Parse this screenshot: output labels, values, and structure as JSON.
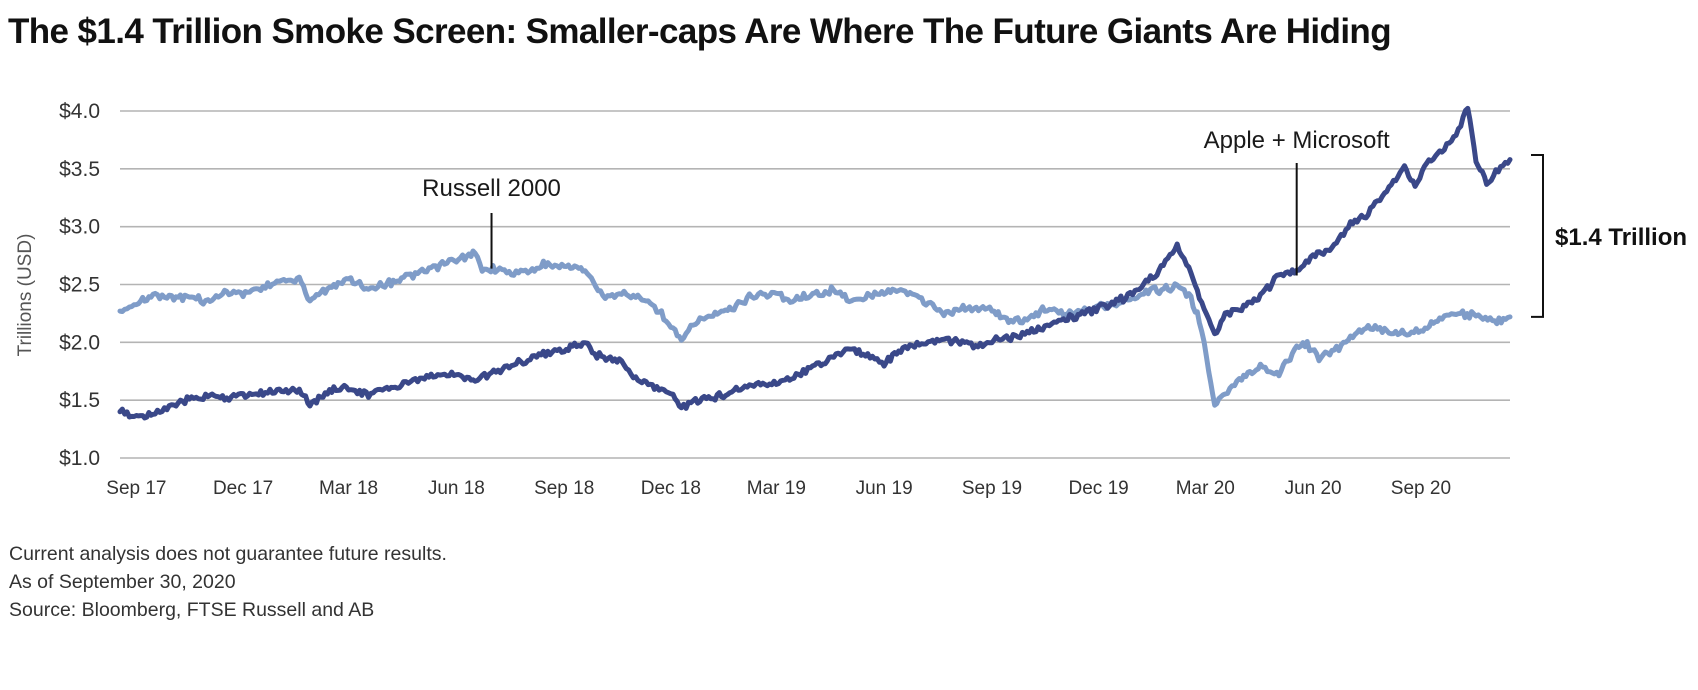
{
  "chart_data": {
    "type": "line",
    "title": "The $1.4 Trillion Smoke Screen: Smaller-caps Are Where The Future Giants Are Hiding",
    "ylabel": "Trillions (USD)",
    "xlabel": "",
    "ylim": [
      1.0,
      4.0
    ],
    "yticks": [
      {
        "value": 4.0,
        "label": "$4.0"
      },
      {
        "value": 3.5,
        "label": "$3.5"
      },
      {
        "value": 3.0,
        "label": "$3.0"
      },
      {
        "value": 2.5,
        "label": "$2.5"
      },
      {
        "value": 2.0,
        "label": "$2.0"
      },
      {
        "value": 1.5,
        "label": "$1.5"
      },
      {
        "value": 1.0,
        "label": "$1.0"
      }
    ],
    "xlim": [
      "2017-09-01",
      "2020-11-30"
    ],
    "xticks": [
      {
        "date": "2017-09-15",
        "label": "Sep 17"
      },
      {
        "date": "2017-12-15",
        "label": "Dec 17"
      },
      {
        "date": "2018-03-15",
        "label": "Mar 18"
      },
      {
        "date": "2018-06-15",
        "label": "Jun 18"
      },
      {
        "date": "2018-09-15",
        "label": "Sep 18"
      },
      {
        "date": "2018-12-15",
        "label": "Dec 18"
      },
      {
        "date": "2019-03-15",
        "label": "Mar 19"
      },
      {
        "date": "2019-06-15",
        "label": "Jun 19"
      },
      {
        "date": "2019-09-15",
        "label": "Sep 19"
      },
      {
        "date": "2019-12-15",
        "label": "Dec 19"
      },
      {
        "date": "2020-03-15",
        "label": "Mar 20"
      },
      {
        "date": "2020-06-15",
        "label": "Jun 20"
      },
      {
        "date": "2020-09-15",
        "label": "Sep 20"
      }
    ],
    "grid": true,
    "series": [
      {
        "name": "Russell 2000",
        "color": "#7f9cc8",
        "points": [
          [
            "2017-09-01",
            2.27
          ],
          [
            "2017-09-15",
            2.33
          ],
          [
            "2017-10-01",
            2.41
          ],
          [
            "2017-10-15",
            2.4
          ],
          [
            "2017-11-01",
            2.38
          ],
          [
            "2017-11-15",
            2.36
          ],
          [
            "2017-12-01",
            2.43
          ],
          [
            "2017-12-15",
            2.42
          ],
          [
            "2018-01-01",
            2.48
          ],
          [
            "2018-01-15",
            2.53
          ],
          [
            "2018-02-01",
            2.55
          ],
          [
            "2018-02-10",
            2.36
          ],
          [
            "2018-02-25",
            2.46
          ],
          [
            "2018-03-15",
            2.55
          ],
          [
            "2018-04-01",
            2.46
          ],
          [
            "2018-04-15",
            2.5
          ],
          [
            "2018-05-01",
            2.56
          ],
          [
            "2018-05-15",
            2.6
          ],
          [
            "2018-06-01",
            2.67
          ],
          [
            "2018-06-15",
            2.71
          ],
          [
            "2018-07-01",
            2.77
          ],
          [
            "2018-07-07",
            2.62
          ],
          [
            "2018-07-20",
            2.64
          ],
          [
            "2018-08-01",
            2.6
          ],
          [
            "2018-08-15",
            2.62
          ],
          [
            "2018-09-01",
            2.68
          ],
          [
            "2018-09-15",
            2.66
          ],
          [
            "2018-10-01",
            2.64
          ],
          [
            "2018-10-10",
            2.5
          ],
          [
            "2018-10-20",
            2.39
          ],
          [
            "2018-11-01",
            2.43
          ],
          [
            "2018-11-15",
            2.4
          ],
          [
            "2018-12-01",
            2.32
          ],
          [
            "2018-12-15",
            2.13
          ],
          [
            "2018-12-24",
            2.01
          ],
          [
            "2019-01-05",
            2.18
          ],
          [
            "2019-01-20",
            2.24
          ],
          [
            "2019-02-05",
            2.29
          ],
          [
            "2019-02-20",
            2.4
          ],
          [
            "2019-03-15",
            2.43
          ],
          [
            "2019-03-25",
            2.36
          ],
          [
            "2019-04-15",
            2.42
          ],
          [
            "2019-05-01",
            2.45
          ],
          [
            "2019-05-20",
            2.36
          ],
          [
            "2019-06-01",
            2.39
          ],
          [
            "2019-06-15",
            2.43
          ],
          [
            "2019-07-01",
            2.46
          ],
          [
            "2019-07-15",
            2.38
          ],
          [
            "2019-08-05",
            2.26
          ],
          [
            "2019-08-25",
            2.3
          ],
          [
            "2019-09-15",
            2.28
          ],
          [
            "2019-10-01",
            2.18
          ],
          [
            "2019-10-15",
            2.2
          ],
          [
            "2019-11-01",
            2.3
          ],
          [
            "2019-11-15",
            2.25
          ],
          [
            "2019-12-01",
            2.27
          ],
          [
            "2019-12-15",
            2.32
          ],
          [
            "2020-01-01",
            2.33
          ],
          [
            "2020-01-15",
            2.38
          ],
          [
            "2020-02-01",
            2.45
          ],
          [
            "2020-02-20",
            2.48
          ],
          [
            "2020-03-01",
            2.42
          ],
          [
            "2020-03-10",
            2.2
          ],
          [
            "2020-03-18",
            1.75
          ],
          [
            "2020-03-23",
            1.46
          ],
          [
            "2020-04-01",
            1.55
          ],
          [
            "2020-04-15",
            1.7
          ],
          [
            "2020-05-01",
            1.8
          ],
          [
            "2020-05-15",
            1.72
          ],
          [
            "2020-06-01",
            1.95
          ],
          [
            "2020-06-10",
            1.99
          ],
          [
            "2020-06-20",
            1.86
          ],
          [
            "2020-07-01",
            1.92
          ],
          [
            "2020-07-15",
            2.02
          ],
          [
            "2020-08-01",
            2.14
          ],
          [
            "2020-08-15",
            2.1
          ],
          [
            "2020-09-01",
            2.07
          ],
          [
            "2020-09-15",
            2.1
          ],
          [
            "2020-10-01",
            2.2
          ],
          [
            "2020-10-15",
            2.26
          ],
          [
            "2020-11-01",
            2.23
          ],
          [
            "2020-11-15",
            2.18
          ],
          [
            "2020-11-30",
            2.22
          ]
        ]
      },
      {
        "name": "Apple + Microsoft",
        "color": "#3a4889",
        "points": [
          [
            "2017-09-01",
            1.4
          ],
          [
            "2017-09-15",
            1.36
          ],
          [
            "2017-10-01",
            1.4
          ],
          [
            "2017-10-15",
            1.44
          ],
          [
            "2017-11-01",
            1.52
          ],
          [
            "2017-11-15",
            1.54
          ],
          [
            "2017-12-01",
            1.52
          ],
          [
            "2017-12-15",
            1.55
          ],
          [
            "2018-01-01",
            1.56
          ],
          [
            "2018-01-15",
            1.6
          ],
          [
            "2018-02-01",
            1.58
          ],
          [
            "2018-02-10",
            1.46
          ],
          [
            "2018-02-25",
            1.57
          ],
          [
            "2018-03-15",
            1.62
          ],
          [
            "2018-04-01",
            1.55
          ],
          [
            "2018-04-15",
            1.6
          ],
          [
            "2018-05-01",
            1.63
          ],
          [
            "2018-05-15",
            1.68
          ],
          [
            "2018-06-01",
            1.72
          ],
          [
            "2018-06-15",
            1.72
          ],
          [
            "2018-07-01",
            1.68
          ],
          [
            "2018-07-15",
            1.74
          ],
          [
            "2018-08-01",
            1.8
          ],
          [
            "2018-08-15",
            1.86
          ],
          [
            "2018-09-01",
            1.9
          ],
          [
            "2018-09-15",
            1.94
          ],
          [
            "2018-10-01",
            1.99
          ],
          [
            "2018-10-15",
            1.88
          ],
          [
            "2018-11-01",
            1.85
          ],
          [
            "2018-11-15",
            1.7
          ],
          [
            "2018-12-01",
            1.62
          ],
          [
            "2018-12-15",
            1.55
          ],
          [
            "2018-12-24",
            1.44
          ],
          [
            "2019-01-05",
            1.5
          ],
          [
            "2019-01-20",
            1.52
          ],
          [
            "2019-02-05",
            1.58
          ],
          [
            "2019-02-20",
            1.62
          ],
          [
            "2019-03-15",
            1.66
          ],
          [
            "2019-04-01",
            1.72
          ],
          [
            "2019-04-15",
            1.8
          ],
          [
            "2019-05-01",
            1.86
          ],
          [
            "2019-05-15",
            1.94
          ],
          [
            "2019-06-01",
            1.88
          ],
          [
            "2019-06-15",
            1.82
          ],
          [
            "2019-07-01",
            1.94
          ],
          [
            "2019-07-15",
            1.99
          ],
          [
            "2019-08-01",
            2.03
          ],
          [
            "2019-08-15",
            2.01
          ],
          [
            "2019-09-01",
            1.96
          ],
          [
            "2019-09-15",
            2.01
          ],
          [
            "2019-10-01",
            2.04
          ],
          [
            "2019-10-15",
            2.08
          ],
          [
            "2019-11-01",
            2.14
          ],
          [
            "2019-11-15",
            2.2
          ],
          [
            "2019-12-01",
            2.24
          ],
          [
            "2019-12-15",
            2.3
          ],
          [
            "2020-01-01",
            2.36
          ],
          [
            "2020-01-15",
            2.44
          ],
          [
            "2020-02-01",
            2.58
          ],
          [
            "2020-02-10",
            2.68
          ],
          [
            "2020-02-20",
            2.84
          ],
          [
            "2020-03-01",
            2.64
          ],
          [
            "2020-03-10",
            2.4
          ],
          [
            "2020-03-18",
            2.2
          ],
          [
            "2020-03-23",
            2.06
          ],
          [
            "2020-04-01",
            2.24
          ],
          [
            "2020-04-15",
            2.3
          ],
          [
            "2020-05-01",
            2.4
          ],
          [
            "2020-05-15",
            2.56
          ],
          [
            "2020-06-01",
            2.62
          ],
          [
            "2020-06-15",
            2.74
          ],
          [
            "2020-07-01",
            2.82
          ],
          [
            "2020-07-15",
            3.0
          ],
          [
            "2020-08-01",
            3.12
          ],
          [
            "2020-08-15",
            3.28
          ],
          [
            "2020-09-01",
            3.52
          ],
          [
            "2020-09-10",
            3.34
          ],
          [
            "2020-09-20",
            3.56
          ],
          [
            "2020-10-01",
            3.64
          ],
          [
            "2020-10-15",
            3.8
          ],
          [
            "2020-10-25",
            4.02
          ],
          [
            "2020-11-01",
            3.56
          ],
          [
            "2020-11-10",
            3.4
          ],
          [
            "2020-11-20",
            3.48
          ],
          [
            "2020-11-30",
            3.58
          ]
        ]
      }
    ],
    "annotations": [
      {
        "text": "Russell 2000",
        "date": "2018-07-15",
        "value": 2.62
      },
      {
        "text": "Apple + Microsoft",
        "date": "2020-06-01",
        "value": 2.56
      }
    ],
    "bracket": {
      "label": "$1.4 Trillion",
      "top_value": 3.62,
      "bottom_value": 2.22
    }
  },
  "footnotes": [
    "Current analysis does not guarantee future results.",
    "As of September 30, 2020",
    "Source: Bloomberg, FTSE Russell and AB"
  ]
}
